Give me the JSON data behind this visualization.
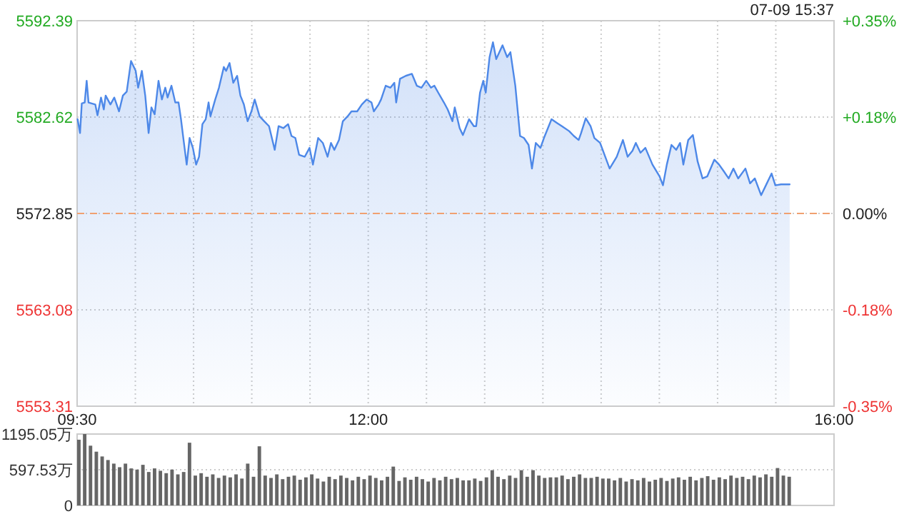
{
  "chart_data": [
    {
      "type": "area",
      "color": "#4d88e8",
      "x": [
        9.504,
        9.525,
        9.54,
        9.565,
        9.582,
        9.598,
        9.656,
        9.675,
        9.705,
        9.729,
        9.745,
        9.786,
        9.819,
        9.86,
        9.893,
        9.926,
        9.963,
        10.003,
        10.024,
        10.056,
        10.085,
        10.114,
        10.138,
        10.166,
        10.199,
        10.228,
        10.257,
        10.277,
        10.31,
        10.343,
        10.371,
        10.392,
        10.412,
        10.441,
        10.466,
        10.494,
        10.522,
        10.547,
        10.576,
        10.604,
        10.629,
        10.645,
        10.686,
        10.718,
        10.76,
        10.78,
        10.809,
        10.841,
        10.874,
        10.902,
        10.932,
        10.964,
        10.997,
        11.025,
        11.067,
        11.107,
        11.148,
        11.197,
        11.23,
        11.271,
        11.312,
        11.341,
        11.374,
        11.406,
        11.455,
        11.496,
        11.525,
        11.57,
        11.61,
        11.651,
        11.68,
        11.709,
        11.749,
        11.782,
        11.823,
        11.856,
        11.905,
        11.945,
        11.987,
        12.028,
        12.048,
        12.089,
        12.11,
        12.15,
        12.191,
        12.224,
        12.24,
        12.273,
        12.322,
        12.375,
        12.417,
        12.457,
        12.498,
        12.539,
        12.568,
        12.601,
        12.65,
        12.682,
        12.723,
        12.743,
        12.785,
        12.813,
        12.866,
        12.907,
        12.927,
        12.96,
        12.988,
        13.009,
        13.042,
        13.071,
        13.099,
        13.153,
        13.193,
        13.221,
        13.263,
        13.304,
        13.337,
        13.377,
        13.406,
        13.439,
        13.479,
        13.509,
        13.574,
        13.623,
        13.663,
        13.725,
        13.766,
        13.807,
        13.828,
        13.868,
        13.909,
        13.942,
        13.991,
        14.073,
        14.134,
        14.187,
        14.228,
        14.269,
        14.298,
        14.338,
        14.38,
        14.441,
        14.502,
        14.531,
        14.564,
        14.604,
        14.645,
        14.678,
        14.706,
        14.748,
        14.788,
        14.829,
        14.871,
        14.911,
        14.972,
        15.013,
        15.055,
        15.095,
        15.136,
        15.177,
        15.239,
        15.279,
        15.32,
        15.374,
        15.423,
        15.464,
        15.496,
        15.545,
        15.619
      ],
      "values": [
        5582.4,
        5581.0,
        5584.0,
        5584.1,
        5586.3,
        5584.1,
        5583.9,
        5582.8,
        5584.6,
        5583.4,
        5584.8,
        5583.9,
        5584.6,
        5583.2,
        5584.8,
        5585.2,
        5588.3,
        5587.3,
        5585.6,
        5587.3,
        5584.8,
        5581.0,
        5583.6,
        5582.9,
        5586.3,
        5584.4,
        5585.6,
        5584.6,
        5585.8,
        5584.1,
        5584.1,
        5582.4,
        5580.5,
        5577.8,
        5580.5,
        5579.5,
        5577.8,
        5578.6,
        5581.9,
        5582.4,
        5584.1,
        5582.7,
        5584.4,
        5585.6,
        5587.7,
        5587.3,
        5588.1,
        5586.1,
        5586.8,
        5584.8,
        5583.9,
        5582.2,
        5583.2,
        5584.4,
        5582.7,
        5582.2,
        5581.7,
        5579.3,
        5581.7,
        5581.5,
        5581.9,
        5580.7,
        5580.5,
        5578.8,
        5578.6,
        5579.5,
        5577.8,
        5580.5,
        5580.0,
        5578.6,
        5580.0,
        5579.3,
        5580.3,
        5582.2,
        5582.7,
        5583.2,
        5583.2,
        5583.9,
        5584.4,
        5584.1,
        5583.2,
        5583.9,
        5584.4,
        5585.8,
        5585.6,
        5586.1,
        5584.1,
        5586.5,
        5586.8,
        5587.0,
        5585.8,
        5585.6,
        5586.3,
        5585.6,
        5585.8,
        5585.1,
        5584.1,
        5583.4,
        5582.2,
        5583.6,
        5581.5,
        5580.8,
        5582.4,
        5581.7,
        5581.7,
        5585.1,
        5586.3,
        5585.1,
        5588.7,
        5590.2,
        5588.5,
        5589.9,
        5588.7,
        5589.2,
        5585.8,
        5580.7,
        5580.5,
        5579.8,
        5577.4,
        5580.0,
        5579.5,
        5580.5,
        5582.4,
        5582.0,
        5581.7,
        5581.2,
        5580.7,
        5580.3,
        5581.0,
        5582.5,
        5581.7,
        5580.5,
        5580.0,
        5577.4,
        5578.6,
        5580.3,
        5578.6,
        5579.2,
        5580.0,
        5579.0,
        5579.5,
        5577.8,
        5576.6,
        5575.7,
        5577.8,
        5579.8,
        5579.3,
        5580.0,
        5577.8,
        5580.3,
        5580.8,
        5578.1,
        5576.4,
        5576.6,
        5578.3,
        5577.8,
        5577.1,
        5576.4,
        5577.4,
        5576.4,
        5577.4,
        5575.9,
        5576.4,
        5574.7,
        5575.9,
        5576.9,
        5575.7,
        5575.8,
        5575.8
      ],
      "xlim": [
        9.5,
        16
      ],
      "xticks": [
        {
          "value": 9.5,
          "label": "09:30"
        },
        {
          "value": 10,
          "label": null
        },
        {
          "value": 10.5,
          "label": null
        },
        {
          "value": 11,
          "label": null
        },
        {
          "value": 11.5,
          "label": null
        },
        {
          "value": 12,
          "label": "12:00"
        },
        {
          "value": 12.5,
          "label": null
        },
        {
          "value": 13,
          "label": null
        },
        {
          "value": 13.5,
          "label": null
        },
        {
          "value": 14,
          "label": null
        },
        {
          "value": 14.5,
          "label": null
        },
        {
          "value": 15,
          "label": null
        },
        {
          "value": 15.5,
          "label": null
        },
        {
          "value": 16,
          "label": "16:00"
        }
      ],
      "ylim": [
        5553.31,
        5592.39
      ],
      "yticks": [
        5553.31,
        5563.08,
        5572.85,
        5582.62,
        5592.39
      ],
      "y2lim": [
        -0.35,
        0.35
      ],
      "y2ticks": [
        {
          "value": -0.35,
          "label": "-0.35%"
        },
        {
          "value": -0.175,
          "label": "-0.18%"
        },
        {
          "value": 0,
          "label": "0.00%"
        },
        {
          "value": 0.175,
          "label": "+0.18%"
        },
        {
          "value": 0.35,
          "label": "+0.35%"
        }
      ],
      "grid": true,
      "ref_lines": [
        {
          "axis": "y",
          "value": 5572.85,
          "color": "#f0a070",
          "line_style": "dashed"
        }
      ],
      "annotations": [
        "07-09 15:37"
      ]
    },
    {
      "type": "bar",
      "color": "#666666",
      "tick_labels": "y",
      "grid": "y",
      "x": [
        9.5,
        9.55,
        9.6,
        9.65,
        9.7,
        9.75,
        9.8,
        9.85,
        9.9,
        9.95,
        10,
        10.05,
        10.1,
        10.15,
        10.2,
        10.25,
        10.3,
        10.35,
        10.4,
        10.45,
        10.5,
        10.55,
        10.6,
        10.65,
        10.7,
        10.75,
        10.8,
        10.85,
        10.9,
        10.95,
        11,
        11.05,
        11.1,
        11.15,
        11.2,
        11.25,
        11.3,
        11.35,
        11.4,
        11.45,
        11.5,
        11.55,
        11.6,
        11.65,
        11.7,
        11.75,
        11.8,
        11.85,
        11.9,
        11.95,
        12,
        12.05,
        12.1,
        12.15,
        12.2,
        12.25,
        12.3,
        12.35,
        12.4,
        12.45,
        12.5,
        12.55,
        12.6,
        12.65,
        12.7,
        12.75,
        12.8,
        12.85,
        12.9,
        12.95,
        13,
        13.05,
        13.1,
        13.15,
        13.2,
        13.25,
        13.3,
        13.35,
        13.4,
        13.45,
        13.5,
        13.55,
        13.6,
        13.65,
        13.7,
        13.75,
        13.8,
        13.85,
        13.9,
        13.95,
        14,
        14.05,
        14.1,
        14.15,
        14.2,
        14.25,
        14.3,
        14.35,
        14.4,
        14.45,
        14.5,
        14.55,
        14.6,
        14.65,
        14.7,
        14.75,
        14.8,
        14.85,
        14.9,
        14.95,
        15,
        15.05,
        15.1,
        15.15,
        15.2,
        15.25,
        15.3,
        15.35,
        15.4,
        15.45,
        15.5,
        15.55,
        15.6
      ],
      "values": [
        1100,
        1195,
        1000,
        900,
        820,
        760,
        700,
        640,
        700,
        620,
        600,
        680,
        560,
        620,
        580,
        540,
        600,
        520,
        560,
        1050,
        500,
        540,
        480,
        520,
        460,
        500,
        470,
        520,
        450,
        700,
        480,
        990,
        500,
        460,
        520,
        440,
        480,
        500,
        430,
        470,
        520,
        450,
        400,
        480,
        440,
        500,
        460,
        420,
        480,
        440,
        500,
        460,
        420,
        480,
        650,
        410,
        470,
        430,
        480,
        440,
        400,
        460,
        420,
        480,
        440,
        460,
        420,
        420,
        450,
        410,
        470,
        590,
        480,
        440,
        500,
        460,
        590,
        480,
        590,
        500,
        460,
        470,
        470,
        500,
        440,
        480,
        520,
        460,
        460,
        480,
        450,
        450,
        420,
        460,
        400,
        440,
        420,
        460,
        400,
        430,
        460,
        410,
        450,
        470,
        430,
        480,
        420,
        460,
        490,
        430,
        470,
        440,
        500,
        460,
        480,
        440,
        500,
        470,
        520,
        480,
        626,
        500,
        480
      ],
      "xlim": [
        9.5,
        16
      ],
      "ylim": [
        0,
        1195.05
      ],
      "yticks": [
        0,
        {
          "value": 597.53,
          "label": "597.53万"
        },
        {
          "value": 1195.05,
          "label": "1195.05万"
        }
      ]
    }
  ]
}
